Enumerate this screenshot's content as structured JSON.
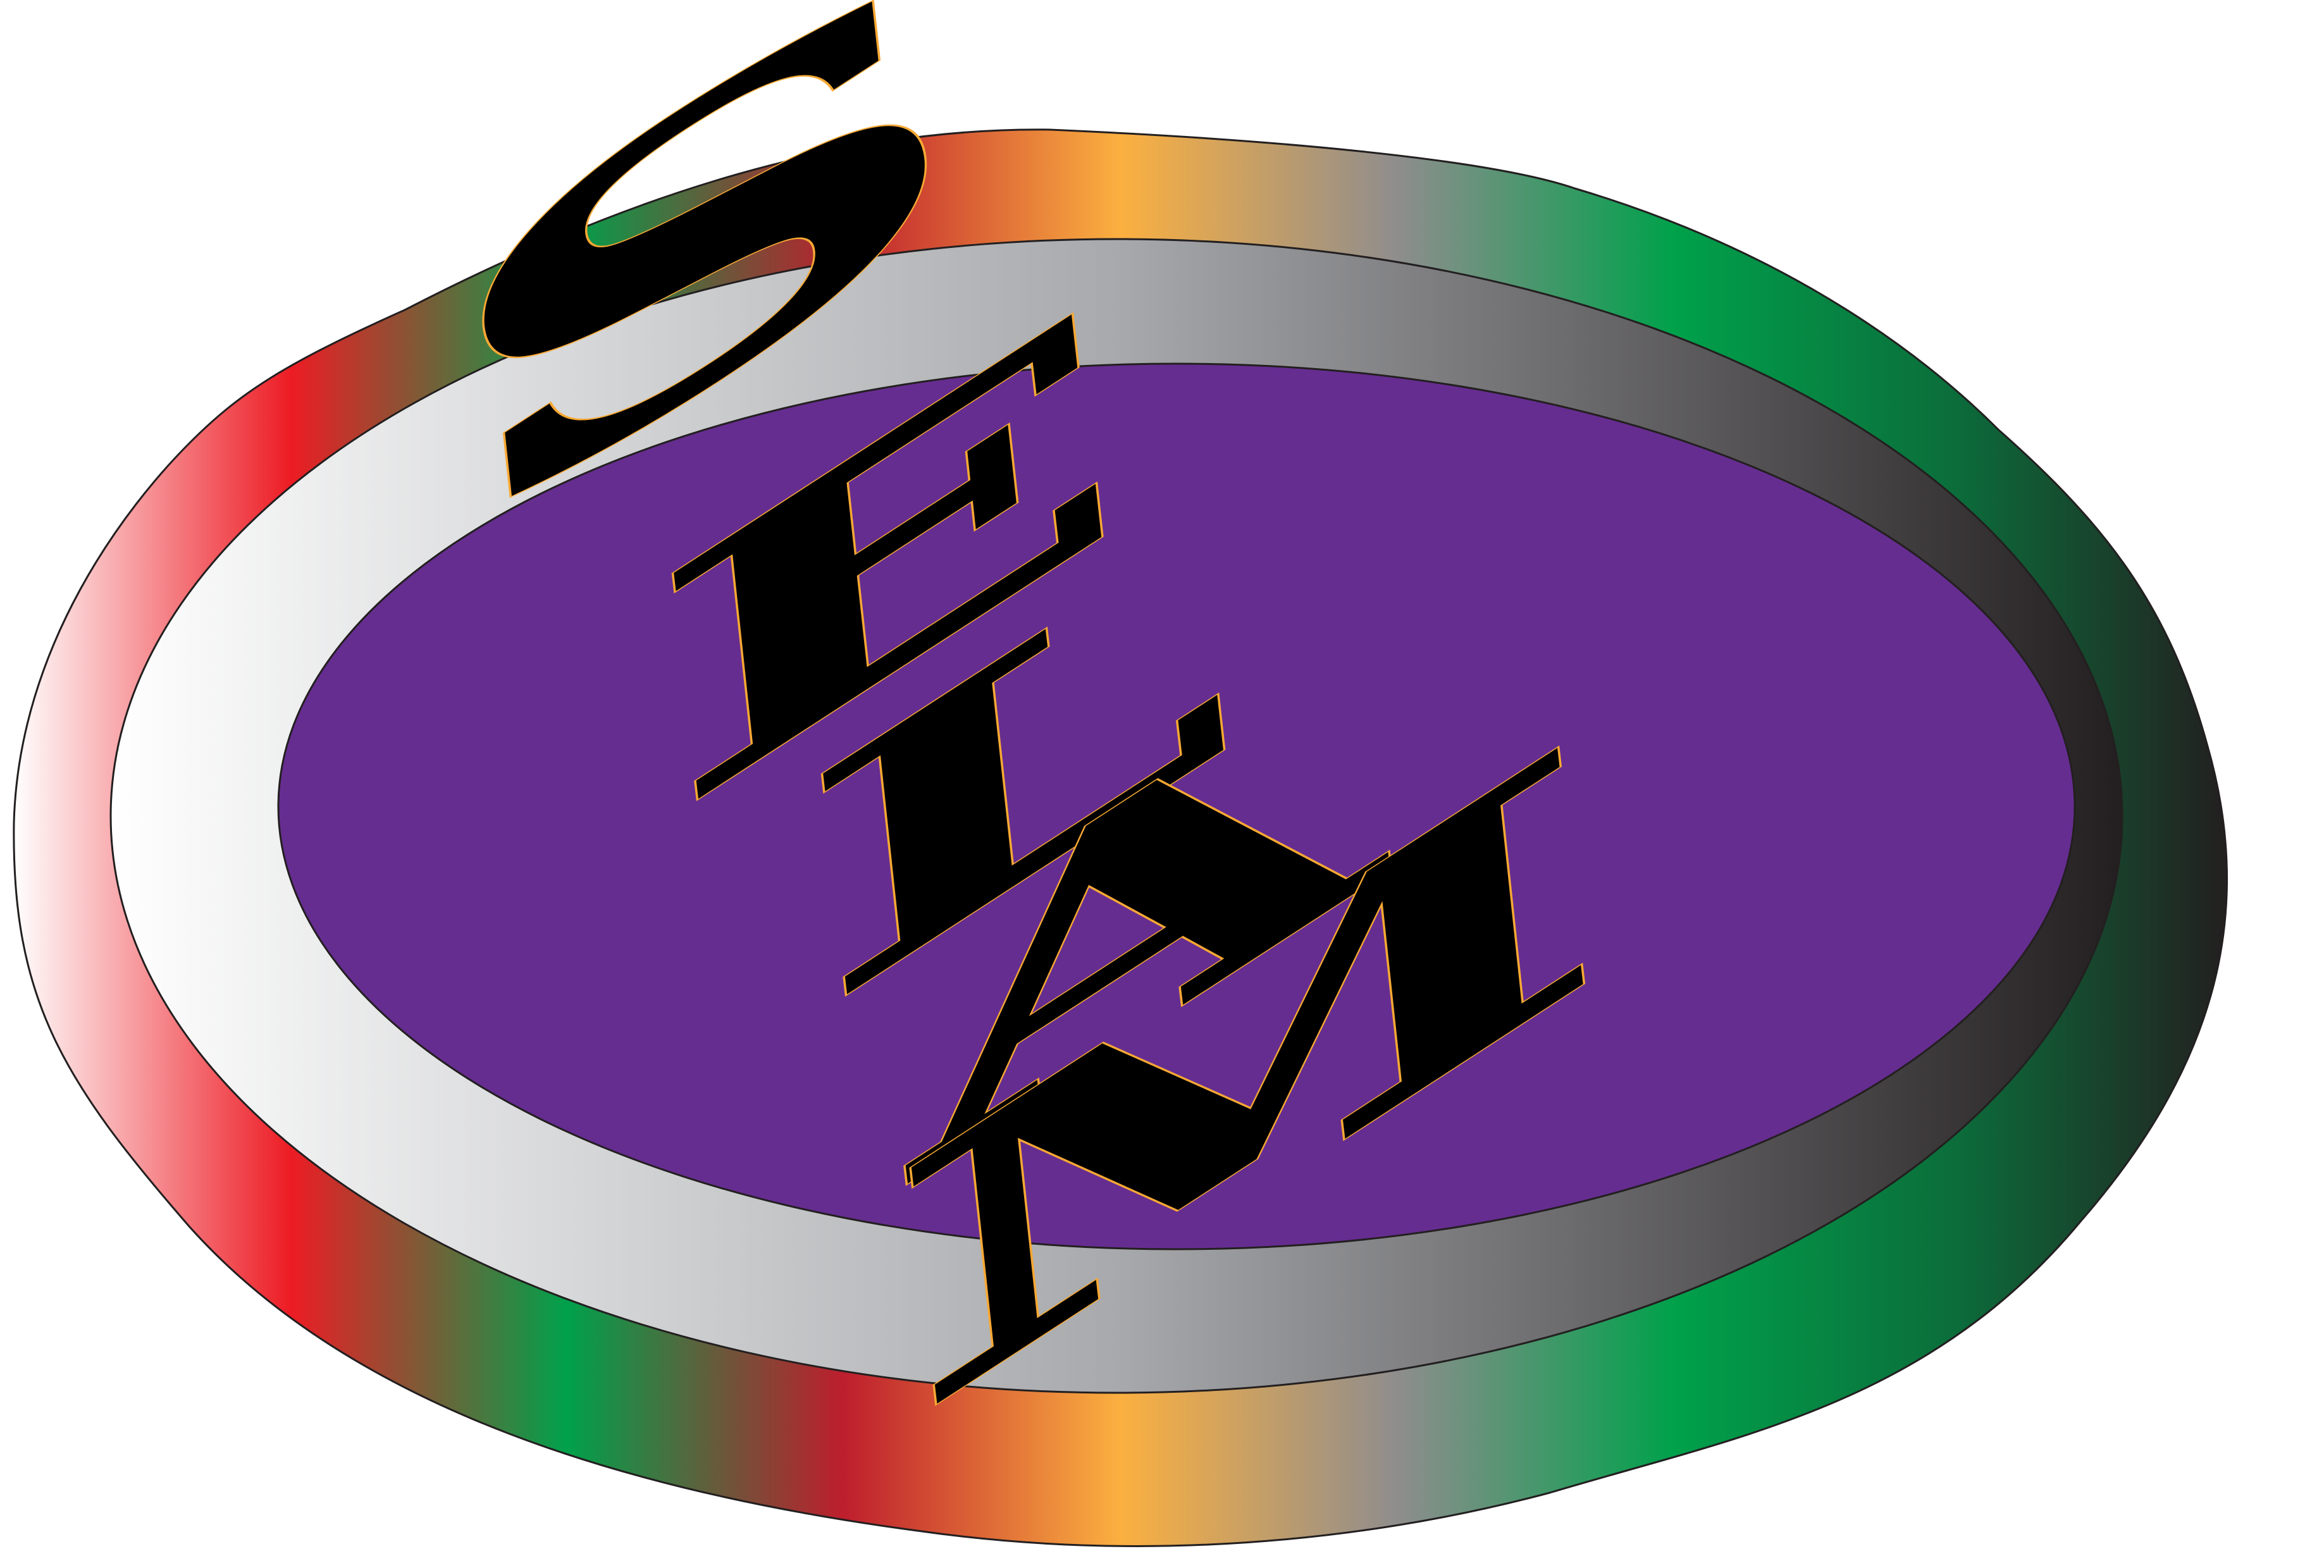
{
  "logo": {
    "letters": [
      "S",
      "E",
      "L",
      "A",
      "M"
    ],
    "colors": {
      "background": "#ffffff",
      "outer_ring_gradient": [
        "#ffffff",
        "#ed1c24",
        "#00a14b",
        "#be1e2d",
        "#fbb040",
        "#8f8d8d",
        "#00a14b",
        "#0b6e3b",
        "#231f20"
      ],
      "middle_ring_gradient": [
        "#ffffff",
        "#a7a9ac",
        "#231f20"
      ],
      "inner_oval_fill": "#662d91",
      "letter_fill": "#000000",
      "letter_outline": "#f7a833",
      "shape_stroke": "#231f20"
    }
  }
}
